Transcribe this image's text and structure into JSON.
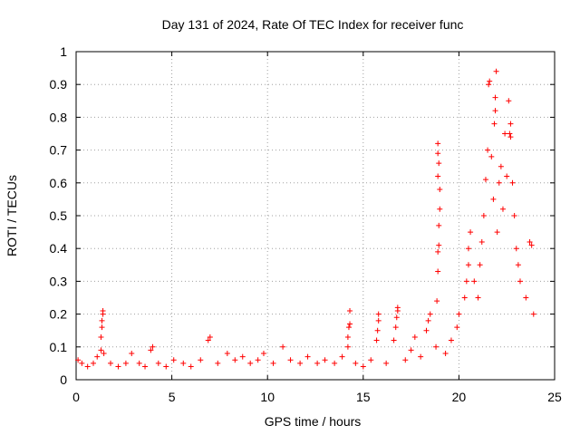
{
  "chart_data": {
    "type": "scatter",
    "title": "Day 131 of 2024, Rate Of TEC Index for receiver func",
    "xlabel": "GPS time / hours",
    "ylabel": "ROTI / TECUs",
    "xlim": [
      0,
      25
    ],
    "ylim": [
      0,
      1
    ],
    "xticks": [
      "0",
      "5",
      "10",
      "15",
      "20",
      "25"
    ],
    "yticks": [
      "0",
      "0.1",
      "0.2",
      "0.3",
      "0.4",
      "0.5",
      "0.6",
      "0.7",
      "0.8",
      "0.9",
      "1"
    ],
    "grid": true,
    "marker": "+",
    "color": "#ff0000",
    "series": [
      {
        "points": [
          [
            0.1,
            0.06
          ],
          [
            0.3,
            0.05
          ],
          [
            0.6,
            0.04
          ],
          [
            0.9,
            0.05
          ],
          [
            1.1,
            0.07
          ],
          [
            1.3,
            0.09
          ],
          [
            1.3,
            0.13
          ],
          [
            1.35,
            0.16
          ],
          [
            1.35,
            0.18
          ],
          [
            1.4,
            0.2
          ],
          [
            1.4,
            0.21
          ],
          [
            1.45,
            0.08
          ],
          [
            1.8,
            0.05
          ],
          [
            2.2,
            0.04
          ],
          [
            2.6,
            0.05
          ],
          [
            2.9,
            0.08
          ],
          [
            3.3,
            0.05
          ],
          [
            3.6,
            0.04
          ],
          [
            3.9,
            0.09
          ],
          [
            4.0,
            0.1
          ],
          [
            4.3,
            0.05
          ],
          [
            4.7,
            0.04
          ],
          [
            5.1,
            0.06
          ],
          [
            5.6,
            0.05
          ],
          [
            6.0,
            0.04
          ],
          [
            6.5,
            0.06
          ],
          [
            6.9,
            0.12
          ],
          [
            7.0,
            0.13
          ],
          [
            7.4,
            0.05
          ],
          [
            7.9,
            0.08
          ],
          [
            8.3,
            0.06
          ],
          [
            8.7,
            0.07
          ],
          [
            9.1,
            0.05
          ],
          [
            9.5,
            0.06
          ],
          [
            9.8,
            0.08
          ],
          [
            10.3,
            0.05
          ],
          [
            10.8,
            0.1
          ],
          [
            11.2,
            0.06
          ],
          [
            11.7,
            0.05
          ],
          [
            12.1,
            0.07
          ],
          [
            12.6,
            0.05
          ],
          [
            13.0,
            0.06
          ],
          [
            13.5,
            0.05
          ],
          [
            13.9,
            0.07
          ],
          [
            14.2,
            0.1
          ],
          [
            14.2,
            0.13
          ],
          [
            14.25,
            0.16
          ],
          [
            14.3,
            0.17
          ],
          [
            14.3,
            0.21
          ],
          [
            14.6,
            0.05
          ],
          [
            15.0,
            0.04
          ],
          [
            15.4,
            0.06
          ],
          [
            15.7,
            0.12
          ],
          [
            15.75,
            0.15
          ],
          [
            15.8,
            0.18
          ],
          [
            15.8,
            0.2
          ],
          [
            16.2,
            0.05
          ],
          [
            16.6,
            0.12
          ],
          [
            16.7,
            0.16
          ],
          [
            16.75,
            0.19
          ],
          [
            16.8,
            0.21
          ],
          [
            16.8,
            0.22
          ],
          [
            17.2,
            0.06
          ],
          [
            17.5,
            0.09
          ],
          [
            17.7,
            0.13
          ],
          [
            18.0,
            0.07
          ],
          [
            18.3,
            0.15
          ],
          [
            18.4,
            0.18
          ],
          [
            18.5,
            0.2
          ],
          [
            18.8,
            0.1
          ],
          [
            18.85,
            0.24
          ],
          [
            18.9,
            0.33
          ],
          [
            18.9,
            0.39
          ],
          [
            18.95,
            0.41
          ],
          [
            18.95,
            0.47
          ],
          [
            19.0,
            0.52
          ],
          [
            19.0,
            0.58
          ],
          [
            18.9,
            0.62
          ],
          [
            18.95,
            0.66
          ],
          [
            18.9,
            0.69
          ],
          [
            18.9,
            0.72
          ],
          [
            19.3,
            0.08
          ],
          [
            19.6,
            0.12
          ],
          [
            19.9,
            0.16
          ],
          [
            20.0,
            0.2
          ],
          [
            20.3,
            0.25
          ],
          [
            20.4,
            0.3
          ],
          [
            20.5,
            0.35
          ],
          [
            20.5,
            0.4
          ],
          [
            20.6,
            0.45
          ],
          [
            20.8,
            0.3
          ],
          [
            21.0,
            0.25
          ],
          [
            21.1,
            0.35
          ],
          [
            21.2,
            0.42
          ],
          [
            21.3,
            0.5
          ],
          [
            21.4,
            0.61
          ],
          [
            21.5,
            0.7
          ],
          [
            21.55,
            0.9
          ],
          [
            21.6,
            0.91
          ],
          [
            21.7,
            0.68
          ],
          [
            21.8,
            0.55
          ],
          [
            21.85,
            0.78
          ],
          [
            21.9,
            0.82
          ],
          [
            21.9,
            0.86
          ],
          [
            21.95,
            0.94
          ],
          [
            22.0,
            0.45
          ],
          [
            22.1,
            0.6
          ],
          [
            22.2,
            0.65
          ],
          [
            22.3,
            0.52
          ],
          [
            22.4,
            0.75
          ],
          [
            22.5,
            0.62
          ],
          [
            22.6,
            0.85
          ],
          [
            22.65,
            0.75
          ],
          [
            22.7,
            0.78
          ],
          [
            22.7,
            0.74
          ],
          [
            22.8,
            0.6
          ],
          [
            22.9,
            0.5
          ],
          [
            23.0,
            0.4
          ],
          [
            23.1,
            0.35
          ],
          [
            23.2,
            0.3
          ],
          [
            23.5,
            0.25
          ],
          [
            23.7,
            0.42
          ],
          [
            23.8,
            0.41
          ],
          [
            23.9,
            0.2
          ]
        ]
      }
    ]
  }
}
